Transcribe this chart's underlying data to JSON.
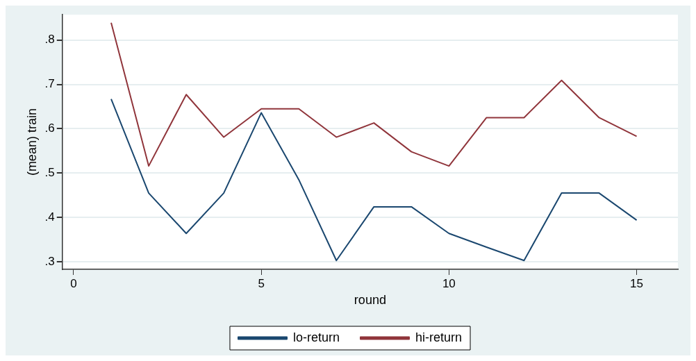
{
  "chart_data": {
    "type": "line",
    "xlabel": "round",
    "ylabel": "(mean) train",
    "x": [
      1,
      2,
      3,
      4,
      5,
      6,
      7,
      8,
      9,
      10,
      11,
      12,
      13,
      14,
      15
    ],
    "series": [
      {
        "name": "lo-return",
        "color": "#1a476f",
        "values": [
          0.667,
          0.455,
          0.364,
          0.455,
          0.636,
          0.485,
          0.303,
          0.424,
          0.424,
          0.364,
          0.333,
          0.303,
          0.455,
          0.455,
          0.394
        ]
      },
      {
        "name": "hi-return",
        "color": "#90353b",
        "values": [
          0.839,
          0.516,
          0.677,
          0.581,
          0.645,
          0.645,
          0.581,
          0.613,
          0.548,
          0.516,
          0.625,
          0.625,
          0.709,
          0.625,
          0.583
        ]
      }
    ],
    "xlim": [
      -0.3,
      16.1
    ],
    "xticks": [
      0,
      5,
      10,
      15
    ],
    "ylim": [
      0.283,
      0.857
    ],
    "yticks": [
      {
        "value": 0.3,
        "label": ".3"
      },
      {
        "value": 0.4,
        "label": ".4"
      },
      {
        "value": 0.5,
        "label": ".5"
      },
      {
        "value": 0.6,
        "label": ".6"
      },
      {
        "value": 0.7,
        "label": ".7"
      },
      {
        "value": 0.8,
        "label": ".8"
      }
    ],
    "grid": "y",
    "legend": "bottom",
    "marker": "none",
    "line_style": "solid"
  }
}
